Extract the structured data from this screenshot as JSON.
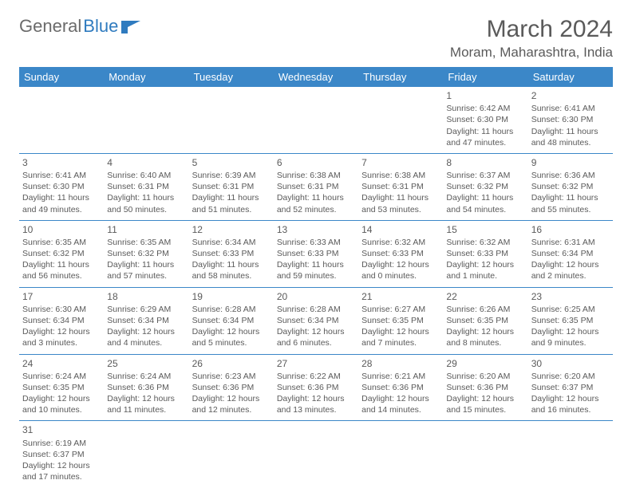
{
  "logo": {
    "text1": "General",
    "text2": "Blue"
  },
  "title": "March 2024",
  "location": "Moram, Maharashtra, India",
  "colors": {
    "header_bg": "#3b87c8",
    "header_text": "#ffffff",
    "row_border": "#3b87c8",
    "body_text": "#5a5a5a",
    "logo_gray": "#6b6b6b",
    "logo_blue": "#2f7bbf",
    "background": "#ffffff"
  },
  "weekdays": [
    "Sunday",
    "Monday",
    "Tuesday",
    "Wednesday",
    "Thursday",
    "Friday",
    "Saturday"
  ],
  "weeks": [
    [
      null,
      null,
      null,
      null,
      null,
      {
        "n": "1",
        "sr": "Sunrise: 6:42 AM",
        "ss": "Sunset: 6:30 PM",
        "d1": "Daylight: 11 hours",
        "d2": "and 47 minutes."
      },
      {
        "n": "2",
        "sr": "Sunrise: 6:41 AM",
        "ss": "Sunset: 6:30 PM",
        "d1": "Daylight: 11 hours",
        "d2": "and 48 minutes."
      }
    ],
    [
      {
        "n": "3",
        "sr": "Sunrise: 6:41 AM",
        "ss": "Sunset: 6:30 PM",
        "d1": "Daylight: 11 hours",
        "d2": "and 49 minutes."
      },
      {
        "n": "4",
        "sr": "Sunrise: 6:40 AM",
        "ss": "Sunset: 6:31 PM",
        "d1": "Daylight: 11 hours",
        "d2": "and 50 minutes."
      },
      {
        "n": "5",
        "sr": "Sunrise: 6:39 AM",
        "ss": "Sunset: 6:31 PM",
        "d1": "Daylight: 11 hours",
        "d2": "and 51 minutes."
      },
      {
        "n": "6",
        "sr": "Sunrise: 6:38 AM",
        "ss": "Sunset: 6:31 PM",
        "d1": "Daylight: 11 hours",
        "d2": "and 52 minutes."
      },
      {
        "n": "7",
        "sr": "Sunrise: 6:38 AM",
        "ss": "Sunset: 6:31 PM",
        "d1": "Daylight: 11 hours",
        "d2": "and 53 minutes."
      },
      {
        "n": "8",
        "sr": "Sunrise: 6:37 AM",
        "ss": "Sunset: 6:32 PM",
        "d1": "Daylight: 11 hours",
        "d2": "and 54 minutes."
      },
      {
        "n": "9",
        "sr": "Sunrise: 6:36 AM",
        "ss": "Sunset: 6:32 PM",
        "d1": "Daylight: 11 hours",
        "d2": "and 55 minutes."
      }
    ],
    [
      {
        "n": "10",
        "sr": "Sunrise: 6:35 AM",
        "ss": "Sunset: 6:32 PM",
        "d1": "Daylight: 11 hours",
        "d2": "and 56 minutes."
      },
      {
        "n": "11",
        "sr": "Sunrise: 6:35 AM",
        "ss": "Sunset: 6:32 PM",
        "d1": "Daylight: 11 hours",
        "d2": "and 57 minutes."
      },
      {
        "n": "12",
        "sr": "Sunrise: 6:34 AM",
        "ss": "Sunset: 6:33 PM",
        "d1": "Daylight: 11 hours",
        "d2": "and 58 minutes."
      },
      {
        "n": "13",
        "sr": "Sunrise: 6:33 AM",
        "ss": "Sunset: 6:33 PM",
        "d1": "Daylight: 11 hours",
        "d2": "and 59 minutes."
      },
      {
        "n": "14",
        "sr": "Sunrise: 6:32 AM",
        "ss": "Sunset: 6:33 PM",
        "d1": "Daylight: 12 hours",
        "d2": "and 0 minutes."
      },
      {
        "n": "15",
        "sr": "Sunrise: 6:32 AM",
        "ss": "Sunset: 6:33 PM",
        "d1": "Daylight: 12 hours",
        "d2": "and 1 minute."
      },
      {
        "n": "16",
        "sr": "Sunrise: 6:31 AM",
        "ss": "Sunset: 6:34 PM",
        "d1": "Daylight: 12 hours",
        "d2": "and 2 minutes."
      }
    ],
    [
      {
        "n": "17",
        "sr": "Sunrise: 6:30 AM",
        "ss": "Sunset: 6:34 PM",
        "d1": "Daylight: 12 hours",
        "d2": "and 3 minutes."
      },
      {
        "n": "18",
        "sr": "Sunrise: 6:29 AM",
        "ss": "Sunset: 6:34 PM",
        "d1": "Daylight: 12 hours",
        "d2": "and 4 minutes."
      },
      {
        "n": "19",
        "sr": "Sunrise: 6:28 AM",
        "ss": "Sunset: 6:34 PM",
        "d1": "Daylight: 12 hours",
        "d2": "and 5 minutes."
      },
      {
        "n": "20",
        "sr": "Sunrise: 6:28 AM",
        "ss": "Sunset: 6:34 PM",
        "d1": "Daylight: 12 hours",
        "d2": "and 6 minutes."
      },
      {
        "n": "21",
        "sr": "Sunrise: 6:27 AM",
        "ss": "Sunset: 6:35 PM",
        "d1": "Daylight: 12 hours",
        "d2": "and 7 minutes."
      },
      {
        "n": "22",
        "sr": "Sunrise: 6:26 AM",
        "ss": "Sunset: 6:35 PM",
        "d1": "Daylight: 12 hours",
        "d2": "and 8 minutes."
      },
      {
        "n": "23",
        "sr": "Sunrise: 6:25 AM",
        "ss": "Sunset: 6:35 PM",
        "d1": "Daylight: 12 hours",
        "d2": "and 9 minutes."
      }
    ],
    [
      {
        "n": "24",
        "sr": "Sunrise: 6:24 AM",
        "ss": "Sunset: 6:35 PM",
        "d1": "Daylight: 12 hours",
        "d2": "and 10 minutes."
      },
      {
        "n": "25",
        "sr": "Sunrise: 6:24 AM",
        "ss": "Sunset: 6:36 PM",
        "d1": "Daylight: 12 hours",
        "d2": "and 11 minutes."
      },
      {
        "n": "26",
        "sr": "Sunrise: 6:23 AM",
        "ss": "Sunset: 6:36 PM",
        "d1": "Daylight: 12 hours",
        "d2": "and 12 minutes."
      },
      {
        "n": "27",
        "sr": "Sunrise: 6:22 AM",
        "ss": "Sunset: 6:36 PM",
        "d1": "Daylight: 12 hours",
        "d2": "and 13 minutes."
      },
      {
        "n": "28",
        "sr": "Sunrise: 6:21 AM",
        "ss": "Sunset: 6:36 PM",
        "d1": "Daylight: 12 hours",
        "d2": "and 14 minutes."
      },
      {
        "n": "29",
        "sr": "Sunrise: 6:20 AM",
        "ss": "Sunset: 6:36 PM",
        "d1": "Daylight: 12 hours",
        "d2": "and 15 minutes."
      },
      {
        "n": "30",
        "sr": "Sunrise: 6:20 AM",
        "ss": "Sunset: 6:37 PM",
        "d1": "Daylight: 12 hours",
        "d2": "and 16 minutes."
      }
    ],
    [
      {
        "n": "31",
        "sr": "Sunrise: 6:19 AM",
        "ss": "Sunset: 6:37 PM",
        "d1": "Daylight: 12 hours",
        "d2": "and 17 minutes."
      },
      null,
      null,
      null,
      null,
      null,
      null
    ]
  ]
}
